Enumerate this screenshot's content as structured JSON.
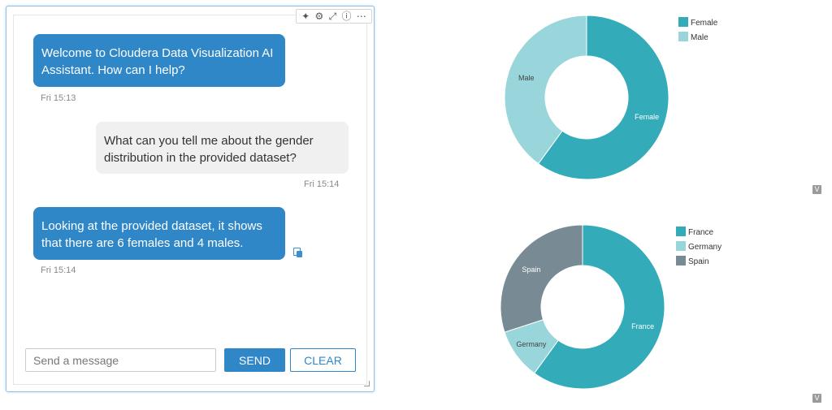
{
  "chat": {
    "toolbar_icons": [
      "sparkle-icon",
      "gear-icon",
      "expand-icon",
      "info-icon",
      "more-icon"
    ],
    "messages": [
      {
        "role": "assistant",
        "lines": [
          "Welcome to Cloudera Data Visualization AI",
          "Assistant. How can I help?"
        ],
        "time": "Fri 15:13"
      },
      {
        "role": "user",
        "lines": [
          "What can you tell me about the gender",
          "distribution in the provided dataset?"
        ],
        "time": "Fri 15:14"
      },
      {
        "role": "assistant",
        "lines": [
          "Looking at the provided dataset, it shows",
          "that there are 6 females and 4 males."
        ],
        "time": "Fri 15:14"
      }
    ],
    "input_placeholder": "Send a message",
    "send_label": "SEND",
    "clear_label": "CLEAR"
  },
  "colors": {
    "primary": "#2f87c8",
    "teal": "#33abb8",
    "light_teal": "#99d6dc",
    "slate": "#788b95"
  },
  "chart_data": [
    {
      "type": "pie",
      "donut": true,
      "categories": [
        "Female",
        "Male"
      ],
      "values": [
        6,
        4
      ],
      "colors": [
        "#33abb8",
        "#99d6dc"
      ],
      "slice_labels": [
        "Female",
        "Male"
      ],
      "legend": [
        "Female",
        "Male"
      ],
      "legend_position": "top-right",
      "badge": "V"
    },
    {
      "type": "pie",
      "donut": true,
      "categories": [
        "France",
        "Germany",
        "Spain"
      ],
      "values": [
        6,
        1,
        3
      ],
      "colors": [
        "#33abb8",
        "#99d6dc",
        "#788b95"
      ],
      "slice_labels": [
        "France",
        "Germany",
        "Spain"
      ],
      "legend": [
        "France",
        "Germany",
        "Spain"
      ],
      "legend_position": "top-right",
      "badge": "V"
    }
  ]
}
